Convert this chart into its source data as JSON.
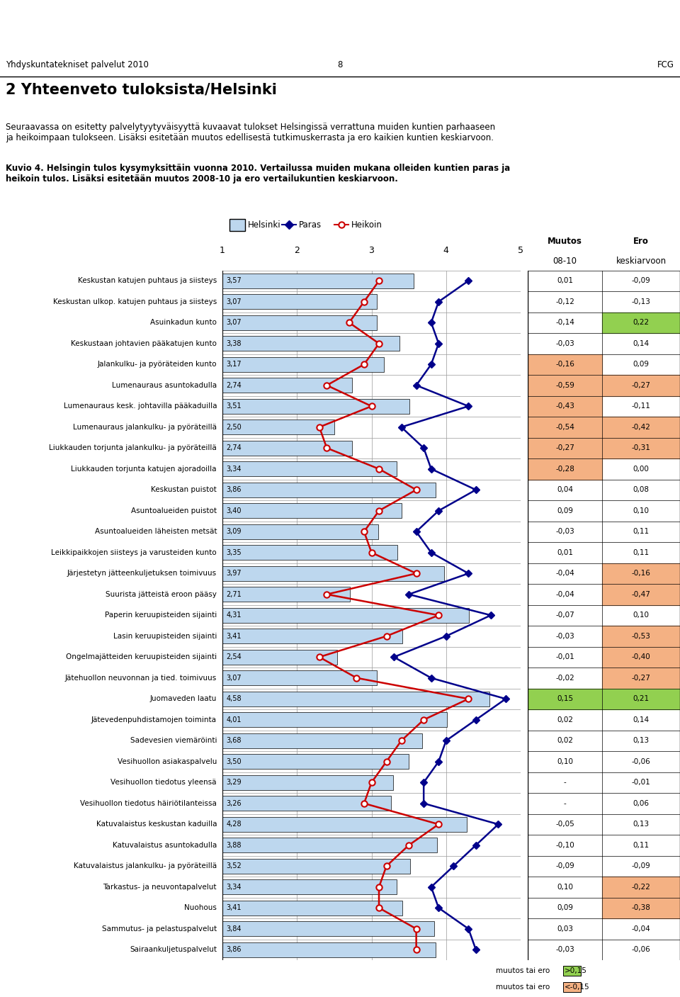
{
  "title_header": "Yhdyskuntatekniset palvelut 2010",
  "page_number": "8",
  "org": "FCG",
  "main_title": "2 Yhteenveto tuloksista/Helsinki",
  "intro_text": "Seuraavassa on esitetty palvelytyytyväisyyttä kuvaavat tulokset Helsingissä verrattuna muiden kuntien parhaaseen\nja heikoimpaan tulokseen. Lisäksi esitetään muutos edellisestä tutkimuskerrasta ja ero kaikien kuntien keskiarvoon.",
  "figure_caption": "Kuvio 4. Helsingin tulos kysymyksittäin vuonna 2010. Vertailussa muiden mukana olleiden kuntien paras ja\nheikoin tulos. Lisäksi esitetään muutos 2008-10 ja ero vertailukuntien keskiarvoon.",
  "legend_helsinki": "Helsinki",
  "legend_paras": "Paras",
  "legend_heikoin": "Heikoin",
  "col_muutos": "Muutos",
  "col_muutos2": "08-10",
  "col_ero": "Ero",
  "col_ero2": "keskiarvoon",
  "categories": [
    "Keskustan katujen puhtaus ja siisteys",
    "Keskustan ulkop. katujen puhtaus ja siisteys",
    "Asuinkadun kunto",
    "Keskustaan johtavien pääkatujen kunto",
    "Jalankulku- ja pyöräteiden kunto",
    "Lumenauraus asuntokadulla",
    "Lumenauraus kesk. johtavilla pääkaduilla",
    "Lumenauraus jalankulku- ja pyöräteillä",
    "Liukkauden torjunta jalankulku- ja pyöräteillä",
    "Liukkauden torjunta katujen ajoradoilla",
    "Keskustan puistot",
    "Asuntoalueiden puistot",
    "Asuntoalueiden läheisten metsät",
    "Leikkipaikkojen siisteys ja varusteiden kunto",
    "Järjestetyn jätteenkuljetuksen toimivuus",
    "Suurista jätteistä eroon pääsy",
    "Paperin keruupisteiden sijainti",
    "Lasin keruupisteiden sijainti",
    "Ongelmajätteiden keruupisteiden sijainti",
    "Jätehuollon neuvonnan ja tied. toimivuus",
    "Juomaveden laatu",
    "Jätevedenpuhdistamojen toiminta",
    "Sadevesien viemäröinti",
    "Vesihuollon asiakaspalvelu",
    "Vesihuollon tiedotus yleensä",
    "Vesihuollon tiedotus häiriötilanteissa",
    "Katuvalaistus keskustan kaduilla",
    "Katuvalaistus asuntokadulla",
    "Katuvalaistus jalankulku- ja pyöräteillä",
    "Tarkastus- ja neuvontapalvelut",
    "Nuohous",
    "Sammutus- ja pelastuspalvelut",
    "Sairaankuljetuspalvelut"
  ],
  "helsinki_values": [
    3.57,
    3.07,
    3.07,
    3.38,
    3.17,
    2.74,
    3.51,
    2.5,
    2.74,
    3.34,
    3.86,
    3.4,
    3.09,
    3.35,
    3.97,
    2.71,
    4.31,
    3.41,
    2.54,
    3.07,
    4.58,
    4.01,
    3.68,
    3.5,
    3.29,
    3.26,
    4.28,
    3.88,
    3.52,
    3.34,
    3.41,
    3.84,
    3.86
  ],
  "paras_values": [
    4.3,
    3.9,
    3.8,
    3.9,
    3.8,
    3.6,
    4.3,
    3.4,
    3.7,
    3.8,
    4.4,
    3.9,
    3.6,
    3.8,
    4.3,
    3.5,
    4.6,
    4.0,
    3.3,
    3.8,
    4.8,
    4.4,
    4.0,
    3.9,
    3.7,
    3.7,
    4.7,
    4.4,
    4.1,
    3.8,
    3.9,
    4.3,
    4.4
  ],
  "heikoin_values": [
    3.1,
    2.9,
    2.7,
    3.1,
    2.9,
    2.4,
    3.0,
    2.3,
    2.4,
    3.1,
    3.6,
    3.1,
    2.9,
    3.0,
    3.6,
    2.4,
    3.9,
    3.2,
    2.3,
    2.8,
    4.3,
    3.7,
    3.4,
    3.2,
    3.0,
    2.9,
    3.9,
    3.5,
    3.2,
    3.1,
    3.1,
    3.6,
    3.6
  ],
  "muutos_values": [
    0.01,
    -0.12,
    -0.14,
    -0.03,
    -0.16,
    -0.59,
    -0.43,
    -0.54,
    -0.27,
    -0.28,
    0.04,
    0.09,
    -0.03,
    0.01,
    -0.04,
    -0.04,
    -0.07,
    -0.03,
    -0.01,
    -0.02,
    0.15,
    0.02,
    0.02,
    0.1,
    null,
    null,
    -0.05,
    -0.1,
    -0.09,
    0.1,
    0.09,
    0.03,
    -0.03
  ],
  "ero_values": [
    -0.09,
    -0.13,
    0.22,
    0.14,
    0.09,
    -0.27,
    -0.11,
    -0.42,
    -0.31,
    0.0,
    0.08,
    0.1,
    0.11,
    0.11,
    -0.16,
    -0.47,
    0.1,
    -0.53,
    -0.4,
    -0.27,
    0.21,
    0.14,
    0.13,
    -0.06,
    -0.01,
    0.06,
    0.13,
    0.11,
    -0.09,
    -0.22,
    -0.38,
    -0.04,
    -0.06
  ],
  "muutos_display": [
    "0,01",
    "-0,12",
    "-0,14",
    "-0,03",
    "-0,16",
    "-0,59",
    "-0,43",
    "-0,54",
    "-0,27",
    "-0,28",
    "0,04",
    "0,09",
    "-0,03",
    "0,01",
    "-0,04",
    "-0,04",
    "-0,07",
    "-0,03",
    "-0,01",
    "-0,02",
    "0,15",
    "0,02",
    "0,02",
    "0,10",
    "-",
    "-",
    "-0,05",
    "-0,10",
    "-0,09",
    "0,10",
    "0,09",
    "0,03",
    "-0,03"
  ],
  "ero_display": [
    "-0,09",
    "-0,13",
    "0,22",
    "0,14",
    "0,09",
    "-0,27",
    "-0,11",
    "-0,42",
    "-0,31",
    "0,00",
    "0,08",
    "0,10",
    "0,11",
    "0,11",
    "-0,16",
    "-0,47",
    "0,10",
    "-0,53",
    "-0,40",
    "-0,27",
    "0,21",
    "0,14",
    "0,13",
    "-0,06",
    "-0,01",
    "0,06",
    "0,13",
    "0,11",
    "-0,09",
    "-0,22",
    "-0,38",
    "-0,04",
    "-0,06"
  ],
  "bar_color": "#BDD7EE",
  "bar_edge_color": "#000000",
  "paras_color": "#00008B",
  "heikoin_color": "#CC0000",
  "grid_color": "#999999",
  "highlight_green_threshold": 0.15,
  "highlight_orange_threshold": -0.15,
  "green_color": "#92D050",
  "orange_color": "#F4B183",
  "axis_min": 1,
  "axis_max": 5
}
